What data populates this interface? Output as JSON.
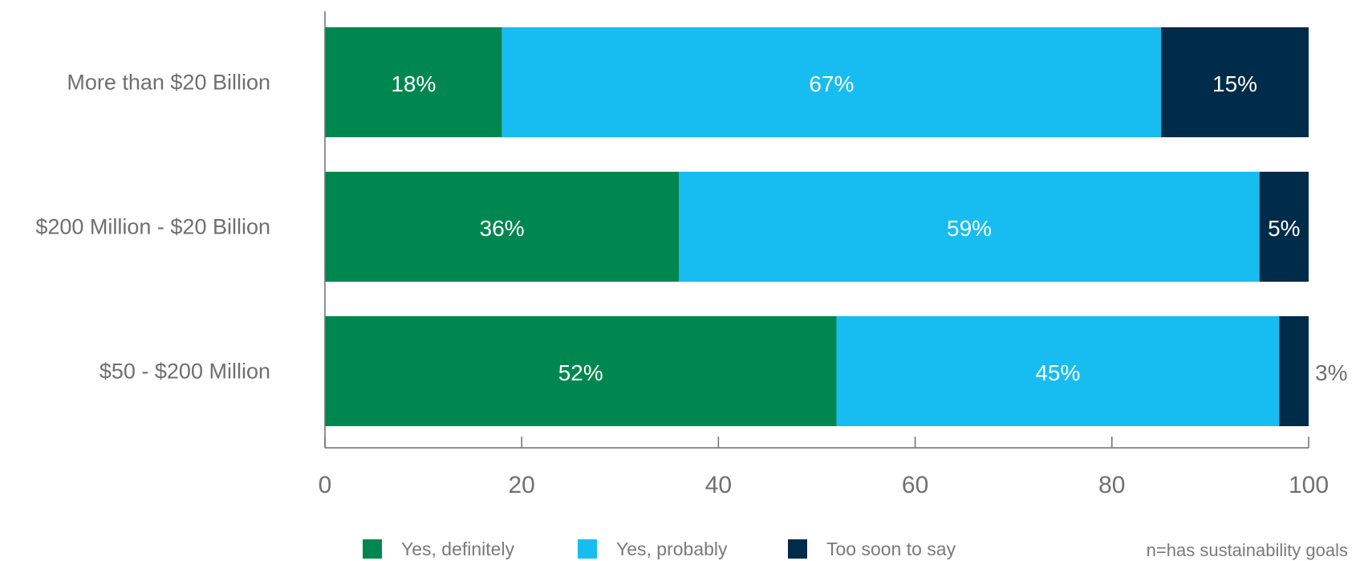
{
  "chart_data": {
    "type": "bar",
    "orientation": "horizontal",
    "stacked": true,
    "categories": [
      "More than $20 Billion",
      "$200 Million - $20 Billion",
      "$50 - $200 Million"
    ],
    "series": [
      {
        "name": "Yes, definitely",
        "color": "#00874f",
        "values": [
          18,
          36,
          52
        ],
        "labels": [
          "18%",
          "36%",
          "52%"
        ]
      },
      {
        "name": "Yes, probably",
        "color": "#17bdf0",
        "values": [
          67,
          59,
          45
        ],
        "labels": [
          "67%",
          "59%",
          "45%"
        ]
      },
      {
        "name": "Too soon to say",
        "color": "#002b49",
        "values": [
          15,
          5,
          3
        ],
        "labels": [
          "15%",
          "5%",
          "3%"
        ]
      }
    ],
    "xlim": [
      0,
      100
    ],
    "xticks": [
      "0",
      "20",
      "40",
      "60",
      "80",
      "100"
    ],
    "grid": false,
    "legend": "bottom",
    "note": "n=has sustainability goals"
  }
}
